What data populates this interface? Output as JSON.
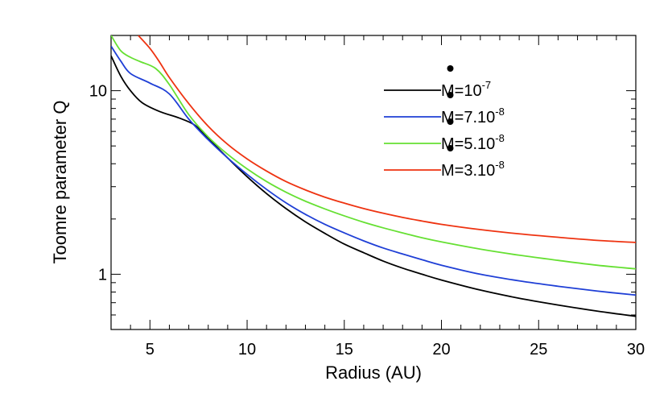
{
  "chart_data": {
    "type": "line",
    "title": "",
    "xlabel": "Radius (AU)",
    "ylabel": "Toomre parameter Q",
    "xlim": [
      3,
      30
    ],
    "ylim": [
      0.5,
      20
    ],
    "yscale": "log",
    "x_ticks": [
      "5",
      "10",
      "15",
      "20",
      "25",
      "30"
    ],
    "y_ticks": [
      "1",
      "10"
    ],
    "grid": false,
    "legend_position": "top-right",
    "series": [
      {
        "name": "Ṁ=10⁻⁷",
        "label_base": "M=10",
        "label_exp": "-7",
        "color": "#000000",
        "x": [
          3.0,
          3.5,
          4.0,
          4.6,
          5.5,
          6.5,
          7.3,
          8.0,
          9.0,
          10.0,
          11.0,
          12.0,
          13.0,
          14.0,
          15.0,
          16.0,
          17.0,
          18.0,
          19.0,
          20.0,
          22.0,
          24.0,
          26.0,
          28.0,
          30.0
        ],
        "y": [
          15.5,
          12.0,
          10.0,
          8.6,
          7.7,
          7.1,
          6.5,
          5.5,
          4.3,
          3.4,
          2.75,
          2.28,
          1.93,
          1.67,
          1.46,
          1.31,
          1.18,
          1.08,
          1.0,
          0.93,
          0.82,
          0.74,
          0.68,
          0.63,
          0.59
        ]
      },
      {
        "name": "Ṁ=7.10⁻⁸",
        "label_base": "M=7.10",
        "label_exp": "-8",
        "color": "#1f3fd6",
        "x": [
          3.0,
          3.5,
          4.0,
          5.0,
          6.0,
          7.0,
          8.0,
          9.0,
          10.0,
          11.0,
          12.0,
          13.0,
          14.0,
          15.0,
          16.0,
          17.0,
          18.0,
          19.0,
          20.0,
          22.0,
          24.0,
          26.0,
          28.0,
          30.0
        ],
        "y": [
          17.5,
          14.5,
          12.4,
          11.0,
          9.6,
          7.0,
          5.4,
          4.3,
          3.5,
          2.9,
          2.45,
          2.12,
          1.87,
          1.68,
          1.52,
          1.39,
          1.29,
          1.2,
          1.12,
          1.0,
          0.92,
          0.86,
          0.81,
          0.77
        ]
      },
      {
        "name": "Ṁ=5.10⁻⁸",
        "label_base": "M=5.10",
        "label_exp": "-8",
        "color": "#66e033",
        "x": [
          3.0,
          3.5,
          4.0,
          4.5,
          5.3,
          6.0,
          7.0,
          8.0,
          9.0,
          10.0,
          11.0,
          12.0,
          13.0,
          14.0,
          15.0,
          16.0,
          17.0,
          18.0,
          19.0,
          20.0,
          22.0,
          24.0,
          26.0,
          28.0,
          30.0
        ],
        "y": [
          20.0,
          16.5,
          15.2,
          14.4,
          13.2,
          10.8,
          7.4,
          5.6,
          4.5,
          3.75,
          3.2,
          2.8,
          2.5,
          2.27,
          2.08,
          1.92,
          1.79,
          1.68,
          1.58,
          1.5,
          1.37,
          1.27,
          1.19,
          1.12,
          1.07
        ]
      },
      {
        "name": "Ṁ=3.10⁻⁸",
        "label_base": "M=3.10",
        "label_exp": "-8",
        "color": "#ee3311",
        "x": [
          4.4,
          5.0,
          5.5,
          6.0,
          7.0,
          8.0,
          9.0,
          10.0,
          11.0,
          12.0,
          13.0,
          14.0,
          15.0,
          16.0,
          17.0,
          18.0,
          19.0,
          20.0,
          22.0,
          24.0,
          26.0,
          28.0,
          30.0
        ],
        "y": [
          20.0,
          17.0,
          14.3,
          11.8,
          8.5,
          6.4,
          5.1,
          4.25,
          3.65,
          3.2,
          2.88,
          2.63,
          2.44,
          2.28,
          2.15,
          2.04,
          1.95,
          1.87,
          1.75,
          1.66,
          1.59,
          1.53,
          1.49
        ]
      }
    ]
  }
}
